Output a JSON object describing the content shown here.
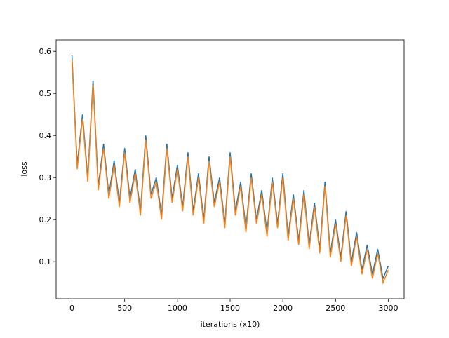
{
  "chart_data": {
    "type": "line",
    "xlabel": "iterations (x10)",
    "ylabel": "loss",
    "x": [
      0,
      50,
      100,
      150,
      200,
      250,
      300,
      350,
      400,
      450,
      500,
      550,
      600,
      650,
      700,
      750,
      800,
      850,
      900,
      950,
      1000,
      1050,
      1100,
      1150,
      1200,
      1250,
      1300,
      1350,
      1400,
      1450,
      1500,
      1550,
      1600,
      1650,
      1700,
      1750,
      1800,
      1850,
      1900,
      1950,
      2000,
      2050,
      2100,
      2150,
      2200,
      2250,
      2300,
      2350,
      2400,
      2450,
      2500,
      2550,
      2600,
      2650,
      2700,
      2750,
      2800,
      2850,
      2900,
      2950,
      3000
    ],
    "series": [
      {
        "color": "#1f77b4",
        "values": [
          0.59,
          0.33,
          0.45,
          0.3,
          0.53,
          0.28,
          0.38,
          0.26,
          0.34,
          0.24,
          0.37,
          0.25,
          0.32,
          0.22,
          0.4,
          0.26,
          0.3,
          0.21,
          0.38,
          0.25,
          0.33,
          0.23,
          0.36,
          0.22,
          0.31,
          0.2,
          0.35,
          0.24,
          0.3,
          0.19,
          0.36,
          0.22,
          0.29,
          0.18,
          0.31,
          0.2,
          0.27,
          0.17,
          0.3,
          0.19,
          0.31,
          0.16,
          0.26,
          0.15,
          0.27,
          0.14,
          0.24,
          0.13,
          0.29,
          0.12,
          0.2,
          0.11,
          0.22,
          0.1,
          0.17,
          0.08,
          0.14,
          0.07,
          0.13,
          0.06,
          0.09
        ]
      },
      {
        "color": "#ff7f0e",
        "values": [
          0.58,
          0.32,
          0.44,
          0.29,
          0.52,
          0.27,
          0.37,
          0.25,
          0.33,
          0.23,
          0.36,
          0.24,
          0.31,
          0.21,
          0.39,
          0.25,
          0.29,
          0.2,
          0.37,
          0.24,
          0.32,
          0.22,
          0.35,
          0.21,
          0.3,
          0.19,
          0.34,
          0.23,
          0.29,
          0.18,
          0.35,
          0.21,
          0.28,
          0.17,
          0.3,
          0.19,
          0.26,
          0.16,
          0.29,
          0.18,
          0.3,
          0.15,
          0.25,
          0.14,
          0.26,
          0.13,
          0.23,
          0.12,
          0.28,
          0.11,
          0.19,
          0.1,
          0.21,
          0.09,
          0.16,
          0.07,
          0.13,
          0.06,
          0.12,
          0.05,
          0.08
        ]
      }
    ],
    "xlim": [
      -150,
      3150
    ],
    "xticks": [
      0,
      500,
      1000,
      1500,
      2000,
      2500,
      3000
    ],
    "ylim": [
      0.012,
      0.627
    ],
    "yticks": [
      0.1,
      0.2,
      0.3,
      0.4,
      0.5,
      0.6
    ]
  }
}
